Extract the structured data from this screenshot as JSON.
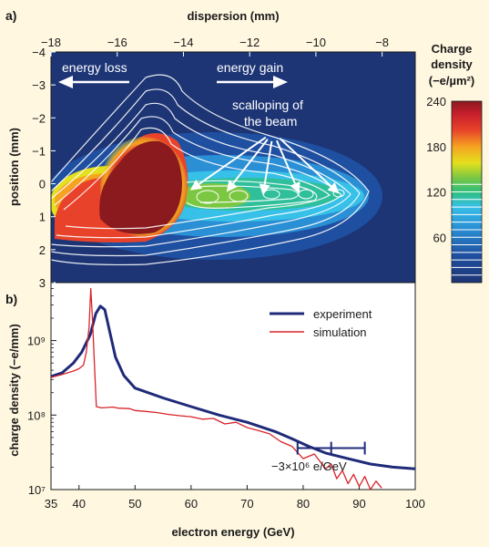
{
  "chart_data": [
    {
      "type": "heatmap",
      "panel_label": "a)",
      "xlabel": "dispersion (mm)",
      "ylabel": "position (mm)",
      "xlim": [
        -18,
        -7
      ],
      "ylim": [
        -4,
        3
      ],
      "x_ticks": [
        -18,
        -16,
        -14,
        -12,
        -10,
        -8
      ],
      "y_ticks": [
        -4,
        -3,
        -2,
        -1,
        0,
        1,
        2,
        3
      ],
      "colorbar": {
        "title_lines": [
          "Charge",
          "density",
          "(−e/µm²)"
        ],
        "ticks": [
          240,
          180,
          120,
          60
        ],
        "range": [
          0,
          240
        ]
      },
      "annotations": {
        "energy_loss": "energy loss",
        "energy_gain": "energy gain",
        "scallop_line1": "scalloping of",
        "scallop_line2": "the beam"
      },
      "scallop_points": [
        [
          -13.8,
          0.2
        ],
        [
          -12.7,
          0.25
        ],
        [
          -11.6,
          0.35
        ],
        [
          -10.5,
          0.3
        ],
        [
          -9.3,
          0.3
        ]
      ]
    },
    {
      "type": "line",
      "panel_label": "b)",
      "xlabel": "electron energy (GeV)",
      "ylabel": "charge density (−e/mm)",
      "x_ticks": [
        35,
        40,
        50,
        60,
        70,
        80,
        90,
        100
      ],
      "y_scale": "log",
      "y_ticks": [
        {
          "value": 10000000,
          "label": "10⁷"
        },
        {
          "value": 100000000,
          "label": "10⁸"
        },
        {
          "value": 1000000000,
          "label": "10⁹"
        }
      ],
      "xlim": [
        35,
        100
      ],
      "ylim": [
        10000000,
        6000000000
      ],
      "series": [
        {
          "name": "experiment",
          "color": "#1f2a78",
          "points": [
            [
              35,
              330000000
            ],
            [
              37,
              370000000
            ],
            [
              39,
              500000000
            ],
            [
              40.5,
              700000000
            ],
            [
              42,
              1200000000
            ],
            [
              43,
              2300000000
            ],
            [
              43.8,
              2900000000
            ],
            [
              44.6,
              2600000000
            ],
            [
              45.5,
              1300000000
            ],
            [
              46.5,
              600000000
            ],
            [
              48,
              340000000
            ],
            [
              50,
              230000000
            ],
            [
              55,
              170000000
            ],
            [
              60,
              130000000
            ],
            [
              65,
              100000000
            ],
            [
              70,
              80000000
            ],
            [
              75,
              60000000
            ],
            [
              78,
              48000000
            ],
            [
              81,
              38000000
            ],
            [
              84,
              31000000
            ],
            [
              88,
              26000000
            ],
            [
              92,
              22000000
            ],
            [
              96,
              20000000
            ],
            [
              100,
              19000000
            ]
          ]
        },
        {
          "name": "simulation",
          "color": "#d8232a",
          "points": [
            [
              35,
              320000000
            ],
            [
              37,
              350000000
            ],
            [
              38,
              370000000
            ],
            [
              39,
              390000000
            ],
            [
              40,
              420000000
            ],
            [
              40.8,
              470000000
            ],
            [
              41.3,
              700000000
            ],
            [
              41.8,
              1500000000
            ],
            [
              42.1,
              5000000000
            ],
            [
              42.4,
              2000000000
            ],
            [
              42.8,
              400000000
            ],
            [
              43.1,
              130000000
            ],
            [
              44,
              125000000
            ],
            [
              46,
              128000000
            ],
            [
              47,
              124000000
            ],
            [
              49,
              122000000
            ],
            [
              50,
              115000000
            ],
            [
              52,
              112000000
            ],
            [
              54,
              108000000
            ],
            [
              56,
              102000000
            ],
            [
              58,
              98000000
            ],
            [
              60,
              95000000
            ],
            [
              62,
              88000000
            ],
            [
              64,
              90000000
            ],
            [
              66,
              76000000
            ],
            [
              68,
              80000000
            ],
            [
              70,
              68000000
            ],
            [
              72,
              62000000
            ],
            [
              74,
              56000000
            ],
            [
              76,
              44000000
            ],
            [
              78,
              38000000
            ],
            [
              80,
              26000000
            ],
            [
              82,
              30000000
            ],
            [
              84,
              19000000
            ],
            [
              85,
              22000000
            ],
            [
              86,
              14000000
            ],
            [
              87,
              18000000
            ],
            [
              88,
              12000000
            ],
            [
              89,
              16000000
            ],
            [
              90,
              11000000
            ],
            [
              91,
              15000000
            ],
            [
              92,
              10000000
            ],
            [
              93,
              13000000
            ],
            [
              94,
              10500000
            ]
          ]
        }
      ],
      "error_bar": {
        "x_center": 85,
        "x_low": 79,
        "x_high": 91,
        "y": 36000000
      },
      "annotation": "−3×10⁶ e/GeV"
    }
  ]
}
